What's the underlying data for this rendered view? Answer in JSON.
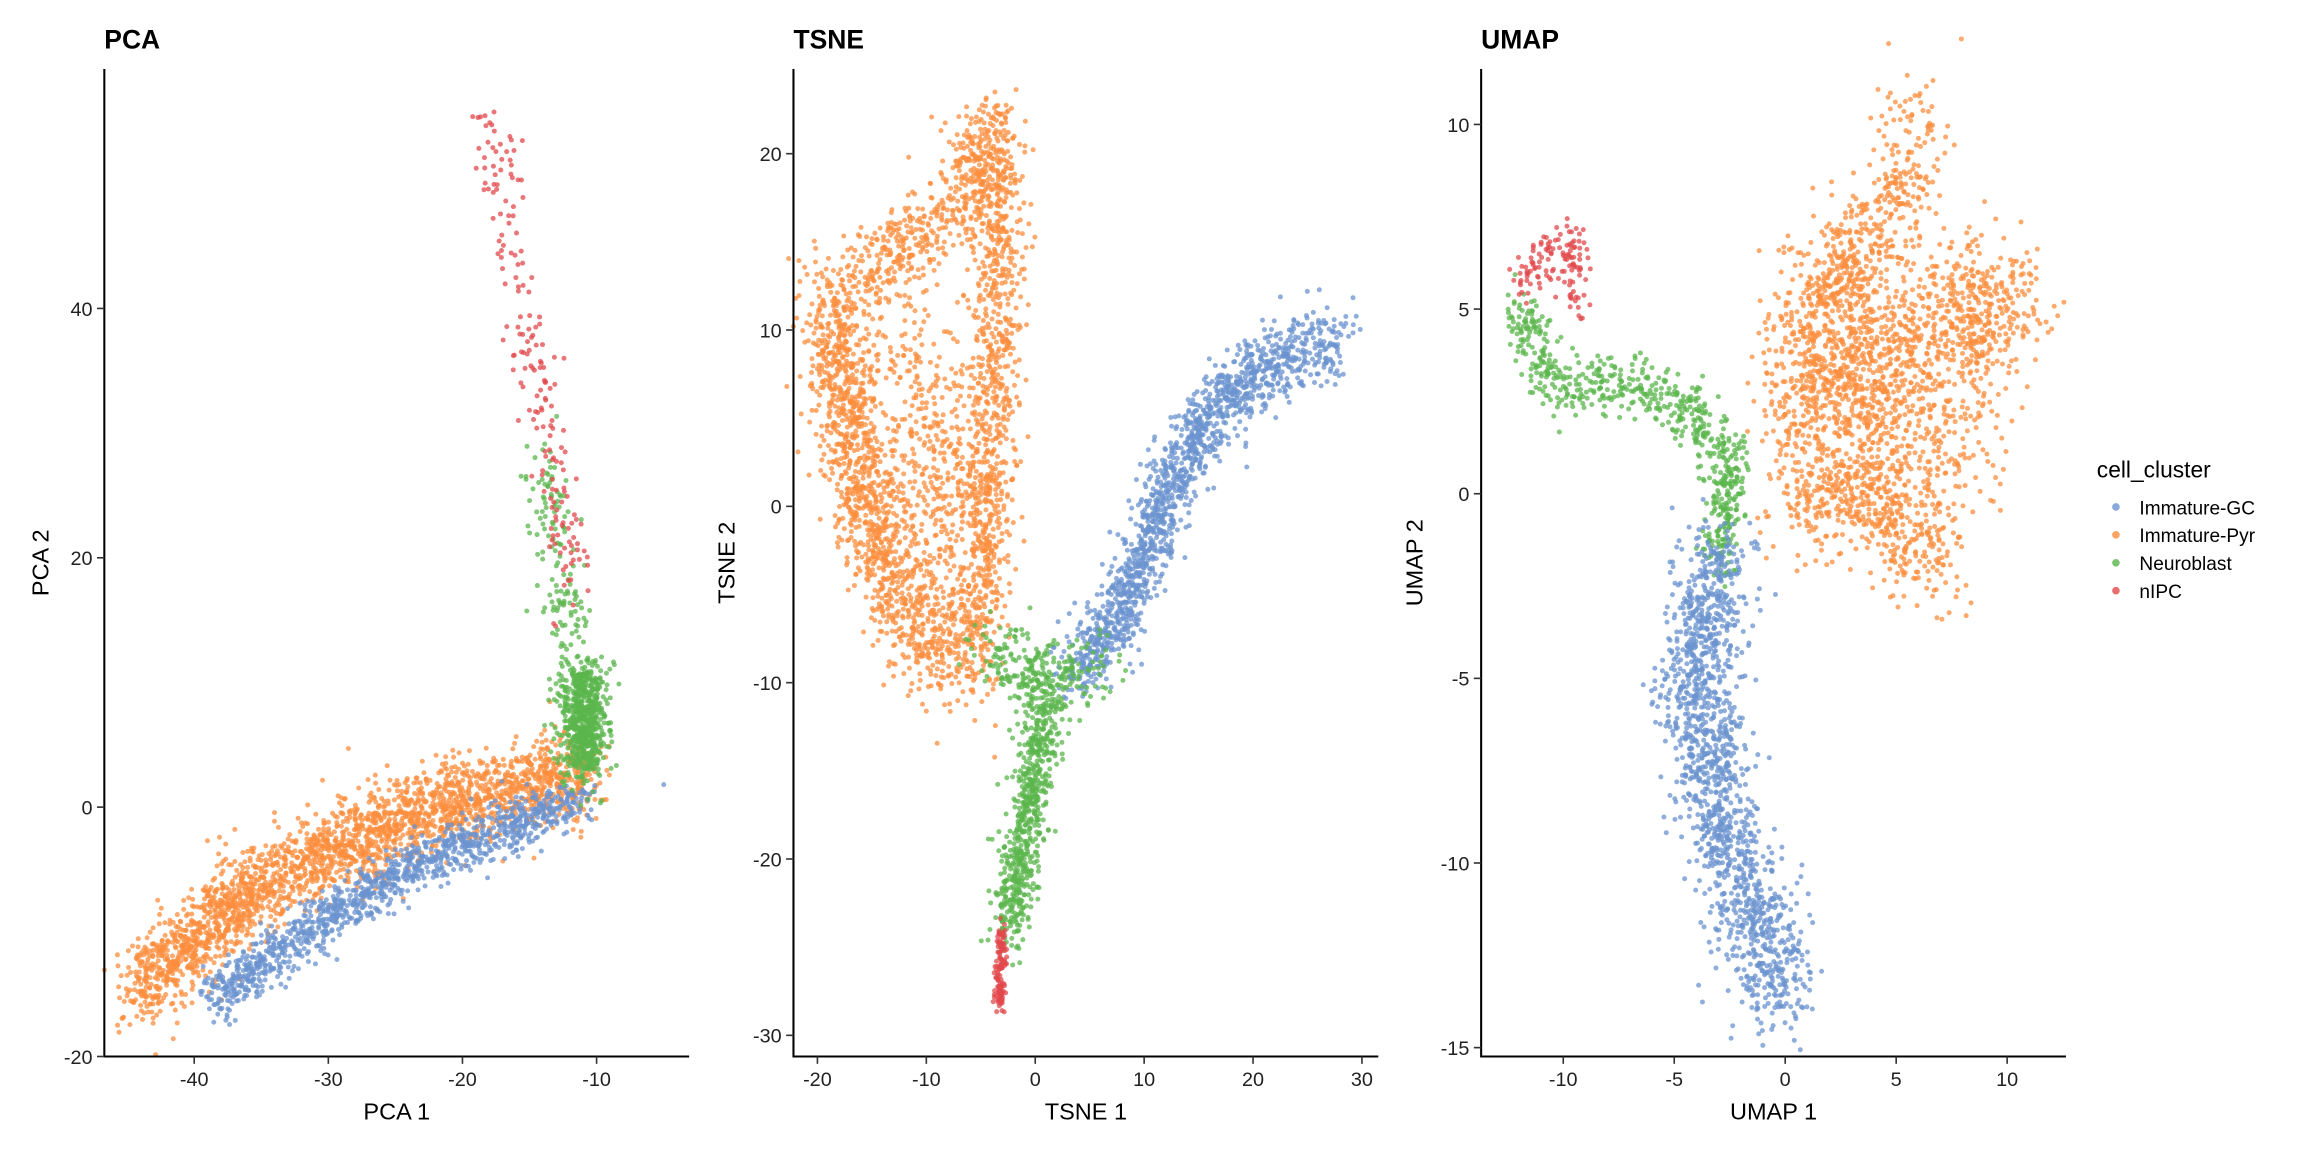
{
  "chart_data": [
    {
      "type": "scatter",
      "title": "PCA",
      "xlabel": "PCA 1",
      "ylabel": "PCA 2",
      "xlim": [
        -46.7,
        -3.1
      ],
      "ylim": [
        -20,
        59.2
      ],
      "xticks": [
        -40,
        -30,
        -20,
        -10
      ],
      "yticks": [
        -20,
        0,
        20,
        40
      ],
      "series": [
        {
          "name": "Immature-Pyr",
          "clusters": [
            {
              "path": [
                [
                  -44.5,
                  -15
                ],
                [
                  -38,
                  -8.5
                ],
                [
                  -30,
                  -3.5
                ],
                [
                  -22,
                  0
                ],
                [
                  -15,
                  1.8
                ],
                [
                  -10.5,
                  2.5
                ]
              ],
              "spread": [
                1.0,
                1.7
              ],
              "n": 2400
            },
            {
              "path": [
                [
                  -28.5,
                  4.7
                ]
              ],
              "spread": [
                0,
                0
              ],
              "n": 1
            }
          ]
        },
        {
          "name": "Immature-GC",
          "clusters": [
            {
              "path": [
                [
                  -38.5,
                  -15.5
                ],
                [
                  -33,
                  -11
                ],
                [
                  -26,
                  -6
                ],
                [
                  -19,
                  -2.5
                ],
                [
                  -11,
                  0.5
                ]
              ],
              "spread": [
                0.8,
                1.0
              ],
              "n": 1200
            },
            {
              "path": [
                [
                  -5,
                  1.8
                ]
              ],
              "spread": [
                0,
                0
              ],
              "n": 1
            }
          ]
        },
        {
          "name": "Neuroblast",
          "clusters": [
            {
              "path": [
                [
                  -11,
                  4
                ],
                [
                  -11,
                  10
                ]
              ],
              "spread": [
                0.9,
                1.6
              ],
              "n": 650
            },
            {
              "path": [
                [
                  -11.5,
                  10
                ],
                [
                  -13,
                  20
                ],
                [
                  -14,
                  28
                ]
              ],
              "spread": [
                0.9,
                1.5
              ],
              "n": 160
            }
          ]
        },
        {
          "name": "nIPC",
          "clusters": [
            {
              "path": [
                [
                  -12,
                  18
                ],
                [
                  -13.5,
                  30
                ],
                [
                  -15.5,
                  40
                ],
                [
                  -17,
                  48
                ],
                [
                  -18,
                  55
                ]
              ],
              "spread": [
                0.9,
                1.5
              ],
              "n": 190
            }
          ]
        }
      ]
    },
    {
      "type": "scatter",
      "title": "TSNE",
      "xlabel": "TSNE 1",
      "ylabel": "TSNE 2",
      "xlim": [
        -22.2,
        31.5
      ],
      "ylim": [
        -31.2,
        24.8
      ],
      "xticks": [
        -20,
        -10,
        0,
        10,
        20,
        30
      ],
      "yticks": [
        -30,
        -20,
        -10,
        0,
        10,
        20
      ],
      "series": [
        {
          "name": "Immature-Pyr",
          "clusters": [
            {
              "path": [
                [
                  -18.5,
                  12
                ],
                [
                  -17,
                  4
                ],
                [
                  -14,
                  -3
                ],
                [
                  -10,
                  -7
                ],
                [
                  -6,
                  -9
                ]
              ],
              "spread": [
                1.6,
                1.8
              ],
              "n": 1300
            },
            {
              "path": [
                [
                  -17,
                  12
                ],
                [
                  -11,
                  15
                ],
                [
                  -6,
                  18
                ],
                [
                  -3.5,
                  21.5
                ]
              ],
              "spread": [
                1.3,
                1.5
              ],
              "n": 500
            },
            {
              "path": [
                [
                  -3.5,
                  21
                ],
                [
                  -3.5,
                  10
                ],
                [
                  -4.5,
                  0
                ],
                [
                  -5,
                  -8
                ]
              ],
              "spread": [
                1.3,
                1.6
              ],
              "n": 900
            },
            {
              "path": [
                [
                  -12,
                  9
                ],
                [
                  -9,
                  2
                ],
                [
                  -8,
                  -4
                ]
              ],
              "spread": [
                2.2,
                2.5
              ],
              "n": 400
            }
          ]
        },
        {
          "name": "Immature-GC",
          "clusters": [
            {
              "path": [
                [
                  3,
                  -9.5
                ],
                [
                  7,
                  -7
                ],
                [
                  10,
                  -3
                ],
                [
                  13,
                  2
                ],
                [
                  16,
                  5
                ],
                [
                  21,
                  8
                ],
                [
                  28,
                  9.5
                ]
              ],
              "spread": [
                1.0,
                1.1
              ],
              "n": 1500
            }
          ]
        },
        {
          "name": "Neuroblast",
          "clusters": [
            {
              "path": [
                [
                  -4,
                  -8
                ],
                [
                  1,
                  -10
                ],
                [
                  6,
                  -9
                ]
              ],
              "spread": [
                1.5,
                1.0
              ],
              "n": 250
            },
            {
              "path": [
                [
                  1,
                  -11
                ],
                [
                  0,
                  -15
                ],
                [
                  -1.5,
                  -20
                ],
                [
                  -2.5,
                  -24
                ]
              ],
              "spread": [
                0.9,
                1.2
              ],
              "n": 650
            }
          ]
        },
        {
          "name": "nIPC",
          "clusters": [
            {
              "path": [
                [
                  -3,
                  -24
                ],
                [
                  -3.3,
                  -28.5
                ]
              ],
              "spread": [
                0.25,
                0.4
              ],
              "n": 120
            }
          ]
        }
      ]
    },
    {
      "type": "scatter",
      "title": "UMAP",
      "xlabel": "UMAP 1",
      "ylabel": "UMAP 2",
      "xlim": [
        -13.7,
        12.65
      ],
      "ylim": [
        -15.24,
        11.5
      ],
      "xticks": [
        -10,
        -5,
        0,
        5,
        10
      ],
      "yticks": [
        -15,
        -10,
        -5,
        0,
        5,
        10
      ],
      "series": [
        {
          "name": "Immature-Pyr",
          "clusters": [
            {
              "path": [
                [
                  0,
                  2
                ],
                [
                  4,
                  4
                ],
                [
                  8,
                  5
                ],
                [
                  11,
                  5
                ]
              ],
              "spread": [
                0.9,
                0.9
              ],
              "n": 800
            },
            {
              "path": [
                [
                  2,
                  5
                ],
                [
                  5,
                  8
                ],
                [
                  6,
                  10
                ]
              ],
              "spread": [
                0.8,
                0.9
              ],
              "n": 350
            },
            {
              "path": [
                [
                  0.5,
                  0
                ],
                [
                  4,
                  0
                ],
                [
                  7,
                  -2
                ]
              ],
              "spread": [
                0.9,
                0.8
              ],
              "n": 500
            },
            {
              "path": [
                [
                  2,
                  2.5
                ],
                [
                  8,
                  1.5
                ]
              ],
              "spread": [
                1.3,
                1.3
              ],
              "n": 500
            },
            {
              "path": [
                [
                  0,
                  4
                ],
                [
                  3,
                  6.5
                ]
              ],
              "spread": [
                0.8,
                0.8
              ],
              "n": 250
            },
            {
              "path": [
                [
                  8.5,
                  6.5
                ],
                [
                  8.5,
                  3
                ]
              ],
              "spread": [
                0.4,
                0.8
              ],
              "n": 100
            }
          ]
        },
        {
          "name": "Neuroblast",
          "clusters": [
            {
              "path": [
                [
                  -12,
                  5
                ],
                [
                  -10.5,
                  3
                ],
                [
                  -7,
                  3
                ],
                [
                  -4.5,
                  2.2
                ],
                [
                  -2.5,
                  1
                ],
                [
                  -3,
                  -2
                ]
              ],
              "spread": [
                0.45,
                0.45
              ],
              "n": 650
            }
          ]
        },
        {
          "name": "nIPC",
          "clusters": [
            {
              "path": [
                [
                  -12,
                  5.5
                ],
                [
                  -11,
                  6.5
                ],
                [
                  -9.5,
                  6.8
                ],
                [
                  -9.3,
                  5
                ]
              ],
              "spread": [
                0.4,
                0.35
              ],
              "n": 130
            }
          ]
        },
        {
          "name": "Immature-GC",
          "clusters": [
            {
              "path": [
                [
                  -3,
                  -1.5
                ],
                [
                  -4,
                  -5
                ],
                [
                  -3,
                  -9
                ],
                [
                  -1,
                  -12
                ],
                [
                  -0.5,
                  -13.8
                ]
              ],
              "spread": [
                0.9,
                0.6
              ],
              "n": 1500
            }
          ]
        }
      ]
    }
  ],
  "legend": {
    "title": "cell_cluster",
    "position": "right",
    "items": [
      {
        "label": "Immature-GC",
        "color": "#6B93CF"
      },
      {
        "label": "Immature-Pyr",
        "color": "#FC8D3E"
      },
      {
        "label": "Neuroblast",
        "color": "#5BB54C"
      },
      {
        "label": "nIPC",
        "color": "#E2484B"
      }
    ]
  }
}
